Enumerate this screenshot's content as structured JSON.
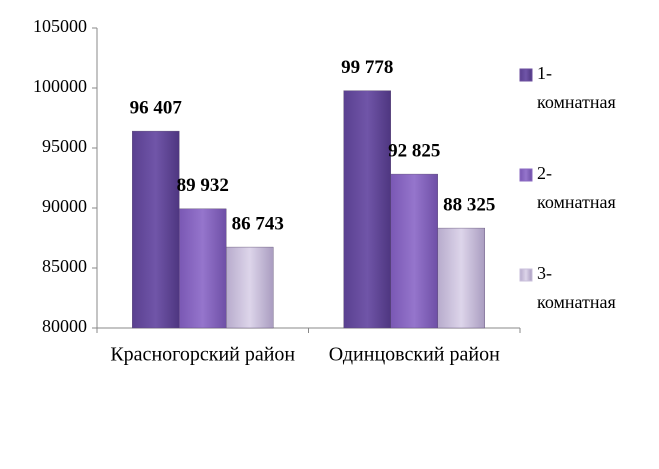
{
  "chart_data": {
    "type": "bar",
    "categories": [
      "Красногорский район",
      "Одинцовский район"
    ],
    "series": [
      {
        "name": "1- комнатная",
        "color": "#6b4e9e",
        "values": [
          96407,
          99778
        ],
        "value_labels": [
          "96 407",
          "99 778"
        ]
      },
      {
        "name": "2- комнатная",
        "color": "#8a68c2",
        "values": [
          89932,
          92825
        ],
        "value_labels": [
          "89 932",
          "92 825"
        ]
      },
      {
        "name": "3- комнатная",
        "color": "#c9bfdb",
        "values": [
          86743,
          88325
        ],
        "value_labels": [
          "86 743",
          "88 325"
        ]
      }
    ],
    "ylim": [
      80000,
      105000
    ],
    "yticks": [
      80000,
      85000,
      90000,
      95000,
      100000,
      105000
    ],
    "grid": false,
    "legend": "right"
  }
}
